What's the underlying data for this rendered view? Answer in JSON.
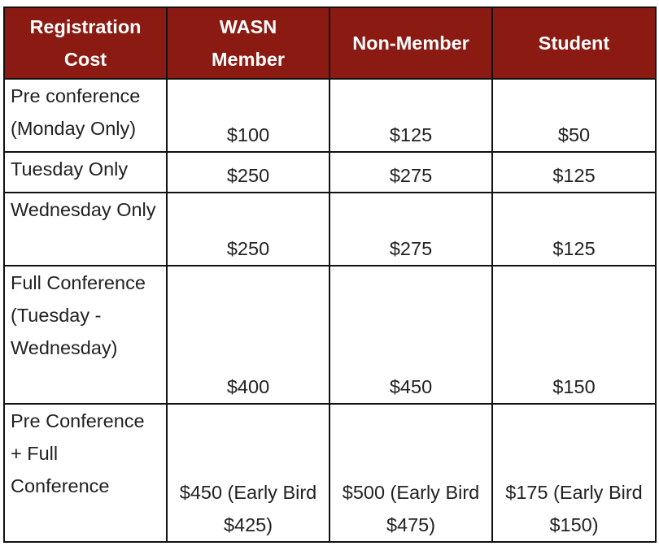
{
  "colors": {
    "header_bg": "#8b1a12",
    "header_text": "#ffffff",
    "border": "#111111"
  },
  "headers": [
    "Registration Cost",
    "WASN Member",
    "Non-Member",
    "Student"
  ],
  "rows": [
    {
      "label": "Pre conference (Monday Only)",
      "values": [
        "$100",
        "$125",
        "$50"
      ]
    },
    {
      "label": "Tuesday Only",
      "values": [
        "$250",
        "$275",
        "$125"
      ]
    },
    {
      "label": "Wednesday Only",
      "values": [
        "$250",
        "$275",
        "$125"
      ]
    },
    {
      "label": "Full Conference (Tuesday - Wednesday)",
      "values": [
        "$400",
        "$450",
        "$150"
      ]
    },
    {
      "label": "Pre Conference + Full Conference",
      "values": [
        "$450 (Early Bird $425)",
        "$500 (Early Bird $475)",
        "$175 (Early Bird $150)"
      ]
    }
  ]
}
